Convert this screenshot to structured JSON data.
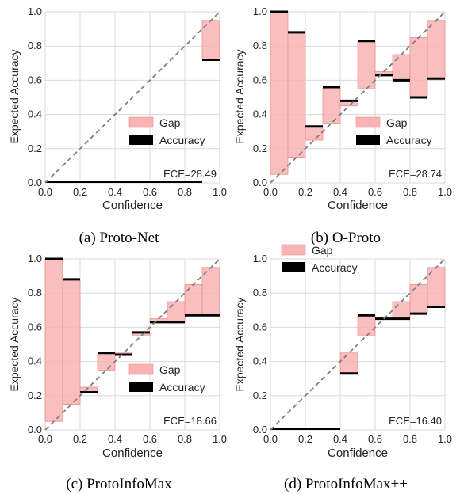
{
  "chart_data": [
    {
      "type": "bar",
      "caption": "(a) Proto-Net",
      "xlabel": "Confidence",
      "ylabel": "Expected Accuracy",
      "xlim": [
        0,
        1
      ],
      "ylim": [
        0,
        1
      ],
      "xticks": [
        "0.0",
        "0.2",
        "0.4",
        "0.6",
        "0.8",
        "1.0"
      ],
      "yticks": [
        "0.0",
        "0.2",
        "0.4",
        "0.6",
        "0.8",
        "1.0"
      ],
      "bin_edges": [
        0.0,
        0.1,
        0.2,
        0.3,
        0.4,
        0.5,
        0.6,
        0.7,
        0.8,
        0.9,
        1.0
      ],
      "accuracy": [
        0.0,
        0.0,
        0.0,
        0.0,
        0.0,
        0.0,
        0.0,
        0.0,
        0.0,
        0.72
      ],
      "gap_bins": [
        9
      ],
      "series": [
        {
          "name": "Gap"
        },
        {
          "name": "Accuracy"
        }
      ],
      "legend": "center-right",
      "ece": "ECE=28.49"
    },
    {
      "type": "bar",
      "caption": "(b) O-Proto",
      "xlabel": "Confidence",
      "ylabel": "Expected Accuracy",
      "xlim": [
        0,
        1
      ],
      "ylim": [
        0,
        1
      ],
      "xticks": [
        "0.0",
        "0.2",
        "0.4",
        "0.6",
        "0.8",
        "1.0"
      ],
      "yticks": [
        "0.0",
        "0.2",
        "0.4",
        "0.6",
        "0.8",
        "1.0"
      ],
      "bin_edges": [
        0.0,
        0.1,
        0.2,
        0.3,
        0.4,
        0.5,
        0.6,
        0.7,
        0.8,
        0.9,
        1.0
      ],
      "accuracy": [
        1.0,
        0.88,
        0.33,
        0.56,
        0.48,
        0.83,
        0.63,
        0.6,
        0.5,
        0.61
      ],
      "gap_bins": [
        0,
        1,
        2,
        3,
        4,
        5,
        6,
        7,
        8,
        9
      ],
      "series": [
        {
          "name": "Gap"
        },
        {
          "name": "Accuracy"
        }
      ],
      "legend": "center-right",
      "ece": "ECE=28.74"
    },
    {
      "type": "bar",
      "caption": "(c) ProtoInfoMax",
      "xlabel": "Confidence",
      "ylabel": "Expected Accuracy",
      "xlim": [
        0,
        1
      ],
      "ylim": [
        0,
        1
      ],
      "xticks": [
        "0.0",
        "0.2",
        "0.4",
        "0.6",
        "0.8",
        "1.0"
      ],
      "yticks": [
        "0.0",
        "0.2",
        "0.4",
        "0.6",
        "0.8",
        "1.0"
      ],
      "bin_edges": [
        0.0,
        0.1,
        0.2,
        0.3,
        0.4,
        0.5,
        0.6,
        0.7,
        0.8,
        0.9,
        1.0
      ],
      "accuracy": [
        1.0,
        0.88,
        0.22,
        0.45,
        0.44,
        0.57,
        0.63,
        0.63,
        0.67,
        0.67
      ],
      "gap_bins": [
        0,
        1,
        2,
        3,
        4,
        5,
        6,
        7,
        8,
        9
      ],
      "series": [
        {
          "name": "Gap"
        },
        {
          "name": "Accuracy"
        }
      ],
      "legend": "lower-right",
      "ece": "ECE=18.66"
    },
    {
      "type": "bar",
      "caption": "(d) ProtoInfoMax++",
      "xlabel": "Confidence",
      "ylabel": "Expected Accuracy",
      "xlim": [
        0,
        1
      ],
      "ylim": [
        0,
        1
      ],
      "xticks": [
        "0.0",
        "0.2",
        "0.4",
        "0.6",
        "0.8",
        "1.0"
      ],
      "yticks": [
        "0.0",
        "0.2",
        "0.4",
        "0.6",
        "0.8",
        "1.0"
      ],
      "bin_edges": [
        0.0,
        0.1,
        0.2,
        0.3,
        0.4,
        0.5,
        0.6,
        0.7,
        0.8,
        0.9,
        1.0
      ],
      "accuracy": [
        0.0,
        0.0,
        0.0,
        0.0,
        0.33,
        0.67,
        0.65,
        0.65,
        0.68,
        0.72
      ],
      "gap_bins": [
        4,
        5,
        6,
        7,
        8,
        9
      ],
      "series": [
        {
          "name": "Gap"
        },
        {
          "name": "Accuracy"
        }
      ],
      "legend": "top-left",
      "ece": "ECE=16.40"
    }
  ],
  "colors": {
    "gap_fill": "#f8b4b4",
    "gap_edge": "#ee8e8e",
    "accuracy": "#000000",
    "diagonal": "#808080",
    "grid": "#d9d9d9"
  }
}
